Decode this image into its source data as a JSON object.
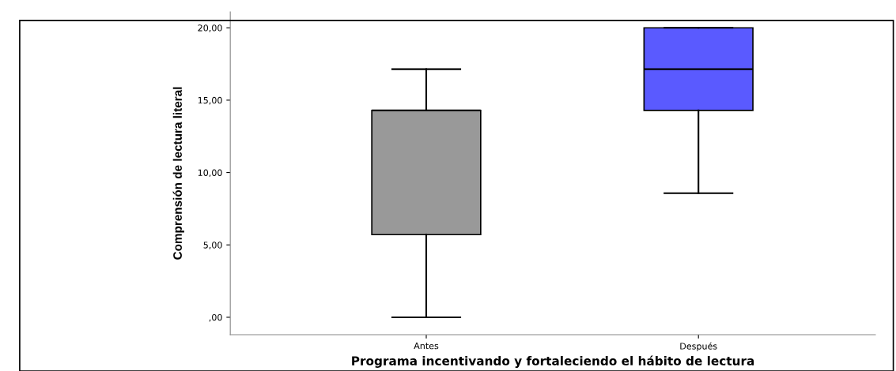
{
  "chart_data": {
    "type": "box",
    "xlabel": "Programa incentivando y fortaleciendo el hábito de lectura",
    "ylabel": "Comprensión de lectura literal",
    "categories": [
      "Antes",
      "Después"
    ],
    "colors": [
      "#999999",
      "#5a5aff"
    ],
    "boxes": [
      {
        "low": 0,
        "q1": 5.71,
        "median": 14.29,
        "q3": 14.29,
        "high": 17.14
      },
      {
        "low": 8.57,
        "q1": 14.29,
        "median": 17.14,
        "q3": 20,
        "high": 20
      }
    ],
    "ylim": [
      -1.2,
      21.1
    ],
    "yticks": [
      {
        "value": 0,
        "label": ",00"
      },
      {
        "value": 5,
        "label": "5,00"
      },
      {
        "value": 10,
        "label": "10,00"
      },
      {
        "value": 15,
        "label": "15,00"
      },
      {
        "value": 20,
        "label": "20,00"
      }
    ],
    "grid": false
  }
}
